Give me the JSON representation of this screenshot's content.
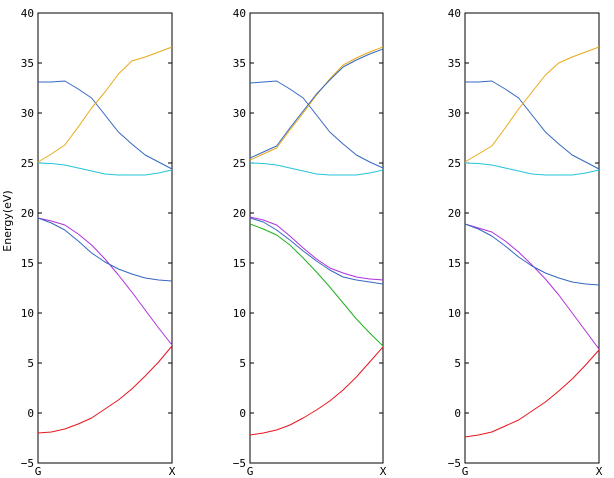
{
  "page": {
    "ylabel": "Energy(eV)"
  },
  "colors": {
    "red": "#e8141e",
    "magenta": "#b030e0",
    "blue": "#3568c0",
    "cyan": "#23c4d8",
    "orange": "#e8a818",
    "green": "#20b020",
    "axis": "#000000"
  },
  "chart_data": [
    {
      "type": "line",
      "xlabel": "",
      "ylabel": "Energy(eV)",
      "xtick_labels": [
        "G",
        "X"
      ],
      "x": [
        0,
        0.1,
        0.2,
        0.3,
        0.4,
        0.5,
        0.6,
        0.7,
        0.8,
        0.9,
        1.0
      ],
      "ylim": [
        -5,
        40
      ],
      "yticks": [
        -5,
        0,
        5,
        10,
        15,
        20,
        25,
        30,
        35,
        40
      ],
      "grid": false,
      "series": [
        {
          "color": "red",
          "values": [
            -2.0,
            -1.9,
            -1.6,
            -1.1,
            -0.5,
            0.4,
            1.3,
            2.4,
            3.7,
            5.1,
            6.7
          ]
        },
        {
          "color": "magenta",
          "values": [
            19.5,
            19.2,
            18.8,
            17.9,
            16.8,
            15.4,
            13.8,
            12.1,
            10.3,
            8.5,
            6.8
          ]
        },
        {
          "color": "blue",
          "values": [
            19.5,
            19.0,
            18.3,
            17.2,
            16.0,
            15.1,
            14.4,
            13.9,
            13.5,
            13.3,
            13.2
          ]
        },
        {
          "color": "cyan",
          "values": [
            25.0,
            24.95,
            24.8,
            24.5,
            24.2,
            23.9,
            23.8,
            23.8,
            23.8,
            24.0,
            24.3
          ]
        },
        {
          "color": "blue",
          "values": [
            33.1,
            33.1,
            33.2,
            32.4,
            31.5,
            29.8,
            28.1,
            26.9,
            25.8,
            25.1,
            24.4
          ]
        },
        {
          "color": "orange",
          "values": [
            25.1,
            25.9,
            26.8,
            28.6,
            30.5,
            32.1,
            33.9,
            35.2,
            35.6,
            36.1,
            36.6
          ]
        }
      ]
    },
    {
      "type": "line",
      "xlabel": "",
      "ylabel": "",
      "xtick_labels": [
        "G",
        "X"
      ],
      "x": [
        0,
        0.1,
        0.2,
        0.3,
        0.4,
        0.5,
        0.6,
        0.7,
        0.8,
        0.9,
        1.0
      ],
      "ylim": [
        -5,
        40
      ],
      "yticks": [
        -5,
        0,
        5,
        10,
        15,
        20,
        25,
        30,
        35,
        40
      ],
      "grid": false,
      "series": [
        {
          "color": "red",
          "values": [
            -2.2,
            -2.0,
            -1.7,
            -1.2,
            -0.5,
            0.3,
            1.2,
            2.3,
            3.6,
            5.1,
            6.6
          ]
        },
        {
          "color": "green",
          "values": [
            18.9,
            18.4,
            17.8,
            16.8,
            15.5,
            14.1,
            12.6,
            11.0,
            9.4,
            8.0,
            6.7
          ]
        },
        {
          "color": "magenta",
          "values": [
            19.6,
            19.3,
            18.8,
            17.7,
            16.5,
            15.4,
            14.5,
            14.0,
            13.6,
            13.4,
            13.3
          ]
        },
        {
          "color": "blue",
          "values": [
            19.5,
            19.1,
            18.3,
            17.3,
            16.2,
            15.2,
            14.3,
            13.6,
            13.3,
            13.1,
            12.9
          ]
        },
        {
          "color": "cyan",
          "values": [
            25.0,
            24.95,
            24.8,
            24.5,
            24.2,
            23.9,
            23.8,
            23.8,
            23.8,
            24.0,
            24.3
          ]
        },
        {
          "color": "blue",
          "values": [
            33.0,
            33.1,
            33.2,
            32.4,
            31.5,
            29.8,
            28.1,
            26.9,
            25.8,
            25.1,
            24.5
          ]
        },
        {
          "color": "orange",
          "values": [
            25.3,
            25.9,
            26.5,
            28.3,
            30.0,
            31.8,
            33.4,
            34.8,
            35.5,
            36.1,
            36.6
          ]
        },
        {
          "color": "blue",
          "values": [
            25.5,
            26.1,
            26.7,
            28.5,
            30.2,
            31.9,
            33.3,
            34.6,
            35.3,
            35.9,
            36.4
          ]
        }
      ]
    },
    {
      "type": "line",
      "xlabel": "",
      "ylabel": "",
      "xtick_labels": [
        "G",
        "X"
      ],
      "x": [
        0,
        0.1,
        0.2,
        0.3,
        0.4,
        0.5,
        0.6,
        0.7,
        0.8,
        0.9,
        1.0
      ],
      "ylim": [
        -5,
        40
      ],
      "yticks": [
        -5,
        0,
        5,
        10,
        15,
        20,
        25,
        30,
        35,
        40
      ],
      "grid": false,
      "series": [
        {
          "color": "red",
          "values": [
            -2.4,
            -2.2,
            -1.9,
            -1.3,
            -0.7,
            0.2,
            1.1,
            2.2,
            3.4,
            4.8,
            6.3
          ]
        },
        {
          "color": "magenta",
          "values": [
            18.9,
            18.5,
            18.1,
            17.2,
            16.1,
            14.8,
            13.4,
            11.8,
            10.0,
            8.2,
            6.4
          ]
        },
        {
          "color": "blue",
          "values": [
            18.9,
            18.4,
            17.7,
            16.7,
            15.6,
            14.7,
            14.0,
            13.5,
            13.1,
            12.9,
            12.8
          ]
        },
        {
          "color": "cyan",
          "values": [
            25.0,
            24.95,
            24.8,
            24.5,
            24.2,
            23.9,
            23.8,
            23.8,
            23.8,
            24.0,
            24.3
          ]
        },
        {
          "color": "blue",
          "values": [
            33.1,
            33.1,
            33.2,
            32.4,
            31.5,
            29.8,
            28.1,
            26.9,
            25.8,
            25.1,
            24.4
          ]
        },
        {
          "color": "orange",
          "values": [
            25.1,
            25.9,
            26.7,
            28.5,
            30.4,
            32.1,
            33.8,
            35.0,
            35.6,
            36.1,
            36.6
          ]
        }
      ]
    }
  ]
}
